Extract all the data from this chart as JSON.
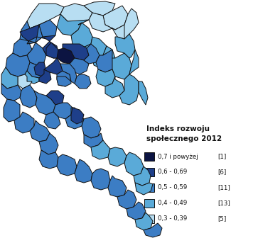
{
  "legend_title_line1": "Indeks rozwoju",
  "legend_title_line2": "społecznego 2012",
  "legend_entries": [
    {
      "label": "0,7 i powyżej",
      "count": "[1]",
      "color": "#0c1442"
    },
    {
      "label": "0,6 - 0,69",
      "count": "[6]",
      "color": "#1e3f8a"
    },
    {
      "label": "0,5 - 0,59",
      "count": "[11]",
      "color": "#3c7dc4"
    },
    {
      "label": "0,4 - 0,49",
      "count": "[13]",
      "color": "#5aaad8"
    },
    {
      "label": "0,3 - 0,39",
      "count": "[5]",
      "color": "#b8def2"
    }
  ],
  "border_color": "#111111",
  "background": "#ffffff",
  "fig_width": 3.63,
  "fig_height": 3.36,
  "dpi": 100,
  "map_xlim": [
    0,
    363
  ],
  "map_ylim": [
    0,
    336
  ]
}
